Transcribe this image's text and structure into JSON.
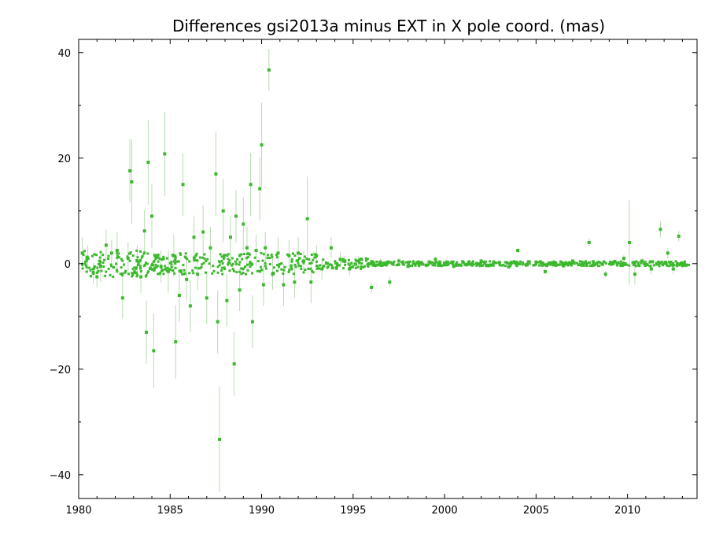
{
  "chart_data": {
    "type": "scatter",
    "title": "Differences gsi2013a minus EXT in X pole coord. (mas)",
    "xlabel": "",
    "ylabel": "",
    "xlim": [
      1980,
      2013.8
    ],
    "ylim": [
      -44.5,
      42.5
    ],
    "x_ticks": [
      1980,
      1985,
      1990,
      1995,
      2000,
      2005,
      2010
    ],
    "y_ticks": [
      -40,
      -20,
      0,
      20,
      40
    ],
    "y_tick_labels": [
      "−40",
      "−20",
      "0",
      "20",
      "40"
    ],
    "grid": false,
    "legend": "none",
    "colors": {
      "point": "#3db82e",
      "errorbar": "#b8dcb2",
      "axis": "#000000"
    },
    "series": [
      {
        "values": [
          [
            1980.2,
            2.0,
            3.0
          ],
          [
            1980.5,
            1.0,
            2.5
          ],
          [
            1980.8,
            -1.8,
            2.0
          ],
          [
            1981.0,
            -2.5,
            2.0
          ],
          [
            1981.2,
            -0.5,
            3.0
          ],
          [
            1981.5,
            3.5,
            3.0
          ],
          [
            1981.8,
            2.0,
            2.5
          ],
          [
            1982.1,
            2.5,
            3.5
          ],
          [
            1982.4,
            -6.5,
            4.0
          ],
          [
            1982.7,
            1.0,
            3.0
          ],
          [
            1982.8,
            17.6,
            6.0
          ],
          [
            1982.9,
            15.5,
            8.0
          ],
          [
            1983.2,
            0.5,
            3.0
          ],
          [
            1983.4,
            -2.5,
            3.0
          ],
          [
            1983.6,
            6.2,
            4.0
          ],
          [
            1983.7,
            -13.0,
            6.0
          ],
          [
            1983.8,
            19.2,
            8.0
          ],
          [
            1984.0,
            9.0,
            6.0
          ],
          [
            1984.1,
            -16.5,
            7.0
          ],
          [
            1984.5,
            -0.5,
            3.0
          ],
          [
            1984.7,
            20.8,
            8.0
          ],
          [
            1984.9,
            -1.5,
            4.0
          ],
          [
            1985.2,
            1.5,
            4.0
          ],
          [
            1985.3,
            -14.8,
            7.0
          ],
          [
            1985.5,
            -6.0,
            5.0
          ],
          [
            1985.7,
            15.0,
            6.0
          ],
          [
            1985.9,
            -3.0,
            4.0
          ],
          [
            1986.1,
            -8.0,
            5.0
          ],
          [
            1986.3,
            5.0,
            4.0
          ],
          [
            1986.5,
            -2.0,
            3.0
          ],
          [
            1986.8,
            6.0,
            5.0
          ],
          [
            1987.0,
            -6.5,
            5.0
          ],
          [
            1987.2,
            3.0,
            4.0
          ],
          [
            1987.5,
            17.0,
            8.0
          ],
          [
            1987.6,
            -11.0,
            6.0
          ],
          [
            1987.7,
            -33.3,
            10.0
          ],
          [
            1987.9,
            10.0,
            6.0
          ],
          [
            1988.1,
            -7.0,
            5.0
          ],
          [
            1988.3,
            5.0,
            4.0
          ],
          [
            1988.5,
            -19.0,
            6.0
          ],
          [
            1988.6,
            9.0,
            5.0
          ],
          [
            1988.8,
            -5.0,
            4.0
          ],
          [
            1989.0,
            7.5,
            5.0
          ],
          [
            1989.2,
            3.0,
            4.0
          ],
          [
            1989.4,
            15.0,
            6.0
          ],
          [
            1989.5,
            -11.0,
            5.0
          ],
          [
            1989.7,
            2.5,
            3.0
          ],
          [
            1989.9,
            14.2,
            6.0
          ],
          [
            1990.0,
            22.5,
            8.0
          ],
          [
            1990.1,
            -4.0,
            4.0
          ],
          [
            1990.2,
            3.0,
            3.0
          ],
          [
            1990.4,
            36.7,
            4.0
          ],
          [
            1990.6,
            -2.0,
            3.0
          ],
          [
            1990.9,
            2.0,
            3.0
          ],
          [
            1991.2,
            -4.0,
            4.0
          ],
          [
            1991.5,
            1.5,
            3.0
          ],
          [
            1991.8,
            -3.5,
            3.0
          ],
          [
            1992.0,
            2.0,
            3.0
          ],
          [
            1992.3,
            0.5,
            2.0
          ],
          [
            1992.5,
            8.5,
            8.0
          ],
          [
            1992.7,
            -3.5,
            4.0
          ],
          [
            1993.0,
            1.5,
            2.0
          ],
          [
            1993.3,
            -1.0,
            2.0
          ],
          [
            1993.8,
            3.0,
            2.0
          ],
          [
            1994.3,
            0.8,
            1.5
          ],
          [
            1994.8,
            -1.0,
            1.2
          ],
          [
            1995.3,
            0.5,
            1.0
          ],
          [
            1996.0,
            -4.5,
            1.0
          ],
          [
            1996.5,
            0.3,
            0.8
          ],
          [
            1997.0,
            -3.5,
            1.0
          ],
          [
            1997.5,
            0.5,
            0.6
          ],
          [
            1998.0,
            -0.5,
            0.5
          ],
          [
            1998.5,
            0.2,
            0.5
          ],
          [
            1999.0,
            -0.3,
            0.5
          ],
          [
            1999.5,
            0.8,
            0.5
          ],
          [
            2000.0,
            0.0,
            0.4
          ],
          [
            2000.5,
            -0.5,
            0.4
          ],
          [
            2001.0,
            0.3,
            0.4
          ],
          [
            2001.5,
            -0.2,
            0.4
          ],
          [
            2002.0,
            0.5,
            0.4
          ],
          [
            2002.5,
            -0.3,
            0.4
          ],
          [
            2003.0,
            0.2,
            0.4
          ],
          [
            2003.5,
            -0.6,
            0.4
          ],
          [
            2004.0,
            2.5,
            0.5
          ],
          [
            2004.5,
            -0.2,
            0.4
          ],
          [
            2005.0,
            0.3,
            0.4
          ],
          [
            2005.5,
            -1.5,
            0.5
          ],
          [
            2006.0,
            0.2,
            0.4
          ],
          [
            2006.5,
            -0.4,
            0.4
          ],
          [
            2007.0,
            0.5,
            0.4
          ],
          [
            2007.5,
            -0.3,
            0.4
          ],
          [
            2007.9,
            4.0,
            0.8
          ],
          [
            2008.3,
            0.0,
            0.5
          ],
          [
            2008.8,
            -2.0,
            0.6
          ],
          [
            2009.3,
            0.4,
            0.5
          ],
          [
            2009.8,
            1.0,
            0.6
          ],
          [
            2010.1,
            4.0,
            8.0
          ],
          [
            2010.4,
            -2.0,
            2.0
          ],
          [
            2010.8,
            0.5,
            0.6
          ],
          [
            2011.3,
            -1.0,
            1.0
          ],
          [
            2011.8,
            6.5,
            1.5
          ],
          [
            2012.2,
            2.0,
            1.0
          ],
          [
            2012.5,
            -1.0,
            1.0
          ],
          [
            2012.8,
            5.2,
            1.0
          ],
          [
            2013.0,
            0.0,
            0.4
          ]
        ]
      }
    ]
  }
}
